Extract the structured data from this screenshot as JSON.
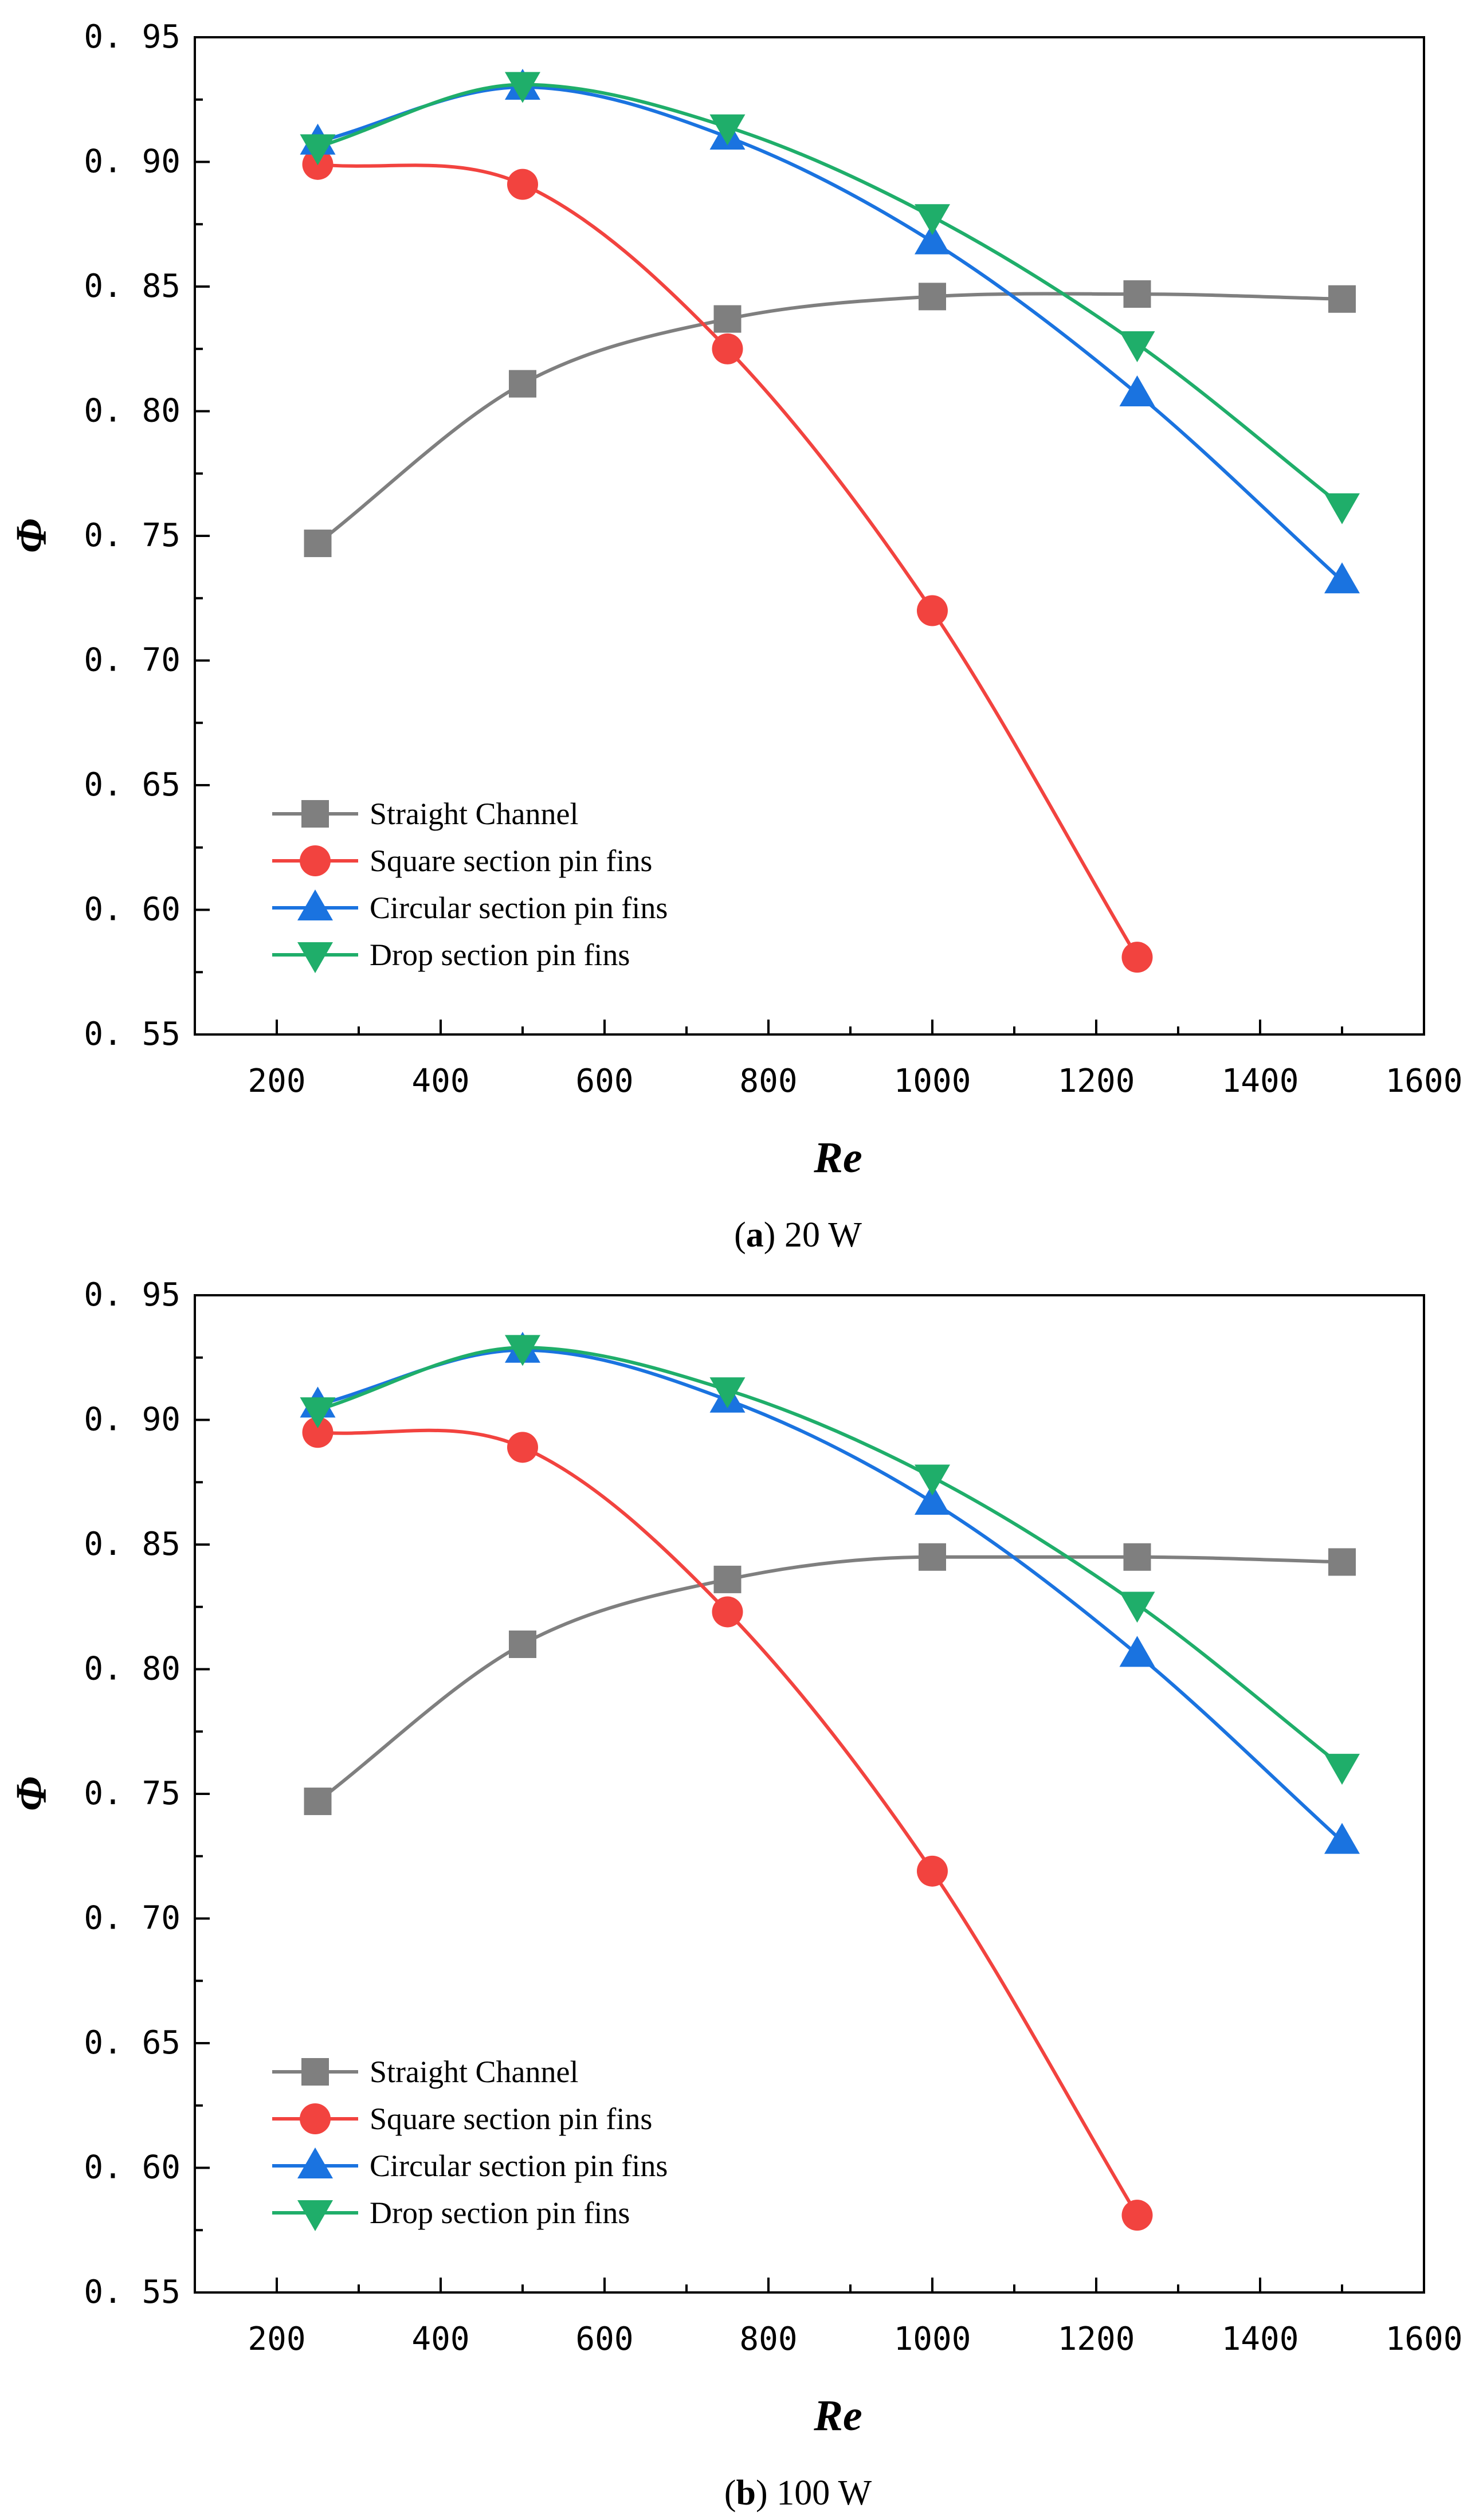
{
  "chart_data": [
    {
      "type": "line",
      "caption_letter": "a",
      "caption_text": "20 W",
      "xlabel": "Re",
      "ylabel": "Φ",
      "xlim": [
        100,
        1600
      ],
      "ylim": [
        0.55,
        0.95
      ],
      "xticks": [
        "200",
        "400",
        "600",
        "800",
        "1000",
        "1200",
        "1400",
        "1600"
      ],
      "yticks": [
        "0. 55",
        "0. 60",
        "0. 65",
        "0. 70",
        "0. 75",
        "0. 80",
        "0. 85",
        "0. 90",
        "0. 95"
      ],
      "grid": false,
      "legend_position": "lower-left",
      "series": [
        {
          "name": "Straight Channel",
          "marker": "square",
          "color": "#7f7f7f",
          "x": [
            250,
            500,
            750,
            1000,
            1250,
            1500
          ],
          "y": [
            0.747,
            0.811,
            0.837,
            0.846,
            0.847,
            0.845
          ]
        },
        {
          "name": "Square section pin fins",
          "marker": "circle",
          "color": "#f2433f",
          "x": [
            250,
            500,
            750,
            1000,
            1250
          ],
          "y": [
            0.899,
            0.891,
            0.825,
            0.72,
            0.581
          ]
        },
        {
          "name": "Circular section pin fins",
          "marker": "triangle-up",
          "color": "#1a73e0",
          "x": [
            250,
            500,
            750,
            1000,
            1250,
            1500
          ],
          "y": [
            0.908,
            0.93,
            0.91,
            0.868,
            0.807,
            0.732
          ]
        },
        {
          "name": "Drop section pin fins",
          "marker": "triangle-down",
          "color": "#1fae6a",
          "x": [
            250,
            500,
            750,
            1000,
            1250,
            1500
          ],
          "y": [
            0.906,
            0.931,
            0.914,
            0.878,
            0.827,
            0.762
          ]
        }
      ]
    },
    {
      "type": "line",
      "caption_letter": "b",
      "caption_text": "100 W",
      "xlabel": "Re",
      "ylabel": "Φ",
      "xlim": [
        100,
        1600
      ],
      "ylim": [
        0.55,
        0.95
      ],
      "xticks": [
        "200",
        "400",
        "600",
        "800",
        "1000",
        "1200",
        "1400",
        "1600"
      ],
      "yticks": [
        "0. 55",
        "0. 60",
        "0. 65",
        "0. 70",
        "0. 75",
        "0. 80",
        "0. 85",
        "0. 90",
        "0. 95"
      ],
      "grid": false,
      "legend_position": "lower-left",
      "series": [
        {
          "name": "Straight Channel",
          "marker": "square",
          "color": "#7f7f7f",
          "x": [
            250,
            500,
            750,
            1000,
            1250,
            1500
          ],
          "y": [
            0.747,
            0.81,
            0.836,
            0.845,
            0.845,
            0.843
          ]
        },
        {
          "name": "Square section pin fins",
          "marker": "circle",
          "color": "#f2433f",
          "x": [
            250,
            500,
            750,
            1000,
            1250
          ],
          "y": [
            0.895,
            0.889,
            0.823,
            0.719,
            0.581
          ]
        },
        {
          "name": "Circular section pin fins",
          "marker": "triangle-up",
          "color": "#1a73e0",
          "x": [
            250,
            500,
            750,
            1000,
            1250,
            1500
          ],
          "y": [
            0.906,
            0.928,
            0.908,
            0.867,
            0.806,
            0.731
          ]
        },
        {
          "name": "Drop section pin fins",
          "marker": "triangle-down",
          "color": "#1fae6a",
          "x": [
            250,
            500,
            750,
            1000,
            1250,
            1500
          ],
          "y": [
            0.904,
            0.929,
            0.912,
            0.877,
            0.826,
            0.761
          ]
        }
      ]
    }
  ]
}
